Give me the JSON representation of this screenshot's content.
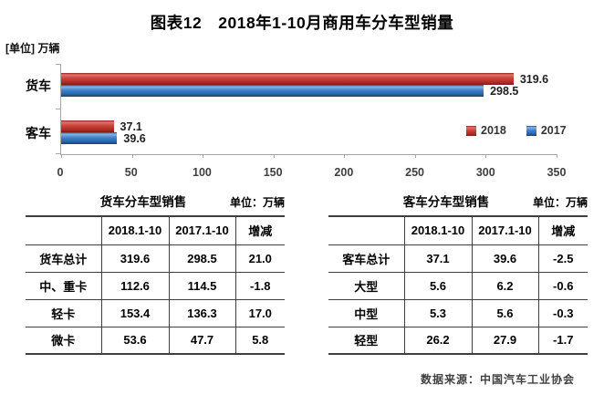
{
  "title": "图表12　2018年1-10月商用车分车型销量",
  "chart_data": {
    "type": "bar",
    "orientation": "horizontal",
    "unit_label": "[单位] 万辆",
    "categories": [
      "货车",
      "客车"
    ],
    "series": [
      {
        "name": "2018",
        "color": "#c0392b",
        "values": [
          319.6,
          37.1
        ]
      },
      {
        "name": "2017",
        "color": "#2e75b6",
        "values": [
          298.5,
          39.6
        ]
      }
    ],
    "value_labels": [
      [
        "319.6",
        "298.5"
      ],
      [
        "37.1",
        "39.6"
      ]
    ],
    "xlim": [
      0,
      350
    ],
    "xticks": [
      "0",
      "50",
      "100",
      "150",
      "200",
      "250",
      "300",
      "350"
    ],
    "legend": [
      "2018",
      "2017"
    ],
    "legend_position": "right-middle",
    "grid": false
  },
  "tables": [
    {
      "title": "货车分车型销售",
      "unit": "单位：万辆",
      "columns": [
        "",
        "2018.1-10",
        "2017.1-10",
        "增减"
      ],
      "rows": [
        [
          "货车总计",
          "319.6",
          "298.5",
          "21.0"
        ],
        [
          "中、重卡",
          "112.6",
          "114.5",
          "-1.8"
        ],
        [
          "轻卡",
          "153.4",
          "136.3",
          "17.0"
        ],
        [
          "微卡",
          "53.6",
          "47.7",
          "5.8"
        ]
      ]
    },
    {
      "title": "客车分车型销售",
      "unit": "单位：万辆",
      "columns": [
        "",
        "2018.1-10",
        "2017.1-10",
        "增减"
      ],
      "rows": [
        [
          "客车总计",
          "37.1",
          "39.6",
          "-2.5"
        ],
        [
          "大型",
          "5.6",
          "6.2",
          "-0.6"
        ],
        [
          "中型",
          "5.3",
          "5.6",
          "-0.3"
        ],
        [
          "轻型",
          "26.2",
          "27.9",
          "-1.7"
        ]
      ]
    }
  ],
  "footer": {
    "source": "数据来源：中国汽车工业协会"
  }
}
